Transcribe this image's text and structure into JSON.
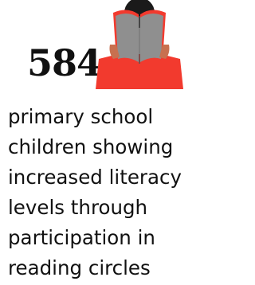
{
  "stat": {
    "value": "584",
    "description": [
      "primary school",
      "children showing",
      "increased literacy",
      "levels through",
      "participation in",
      "reading circles"
    ]
  }
}
